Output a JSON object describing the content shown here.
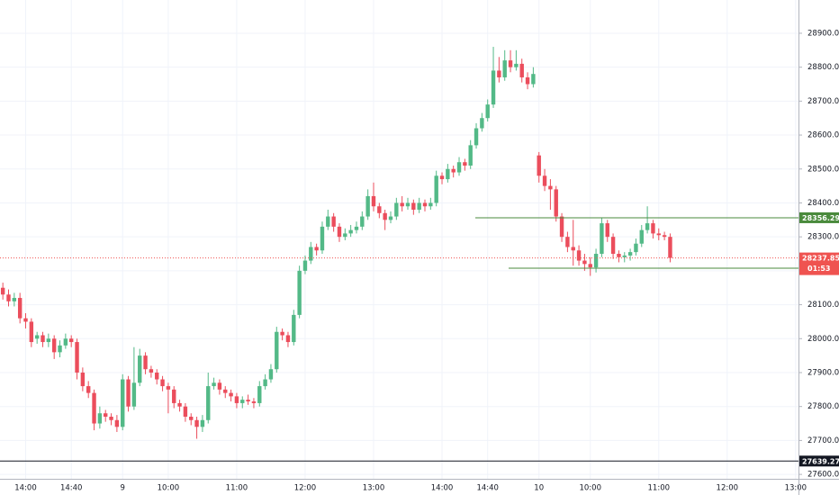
{
  "chart_data": {
    "type": "candlestick",
    "categories": [
      null,
      null,
      null,
      null,
      "14:00",
      null,
      null,
      null,
      null,
      null,
      null,
      null,
      "14:40",
      null,
      null,
      null,
      null,
      null,
      null,
      null,
      null,
      "9",
      null,
      null,
      null,
      null,
      null,
      null,
      null,
      "10:00",
      null,
      null,
      null,
      null,
      null,
      null,
      null,
      null,
      null,
      null,
      null,
      "11:00",
      null,
      null,
      null,
      null,
      null,
      null,
      null,
      null,
      null,
      null,
      null,
      "12:00",
      null,
      null,
      null,
      null,
      null,
      null,
      null,
      null,
      null,
      null,
      null,
      "13:00",
      null,
      null,
      null,
      null,
      null,
      null,
      null,
      null,
      null,
      null,
      null,
      "14:00",
      null,
      null,
      null,
      null,
      null,
      null,
      null,
      "14:40",
      null,
      null,
      null,
      null,
      null,
      null,
      null,
      null,
      "10",
      null,
      null,
      null,
      null,
      null,
      null,
      null,
      null,
      "10:00",
      null,
      null,
      null,
      null,
      null,
      null,
      null,
      null,
      null,
      null,
      null,
      "11:00",
      null,
      null,
      null,
      null,
      null,
      null,
      null,
      null,
      null,
      null,
      null,
      "12:00",
      null,
      null,
      null,
      null,
      null,
      null,
      null,
      null,
      null,
      null,
      null,
      "13:00"
    ],
    "ohlc": [
      [
        28150,
        28165,
        28115,
        28130
      ],
      [
        28130,
        28145,
        28095,
        28110
      ],
      [
        28110,
        28135,
        28095,
        28120
      ],
      [
        28120,
        28135,
        28045,
        28060
      ],
      [
        28060,
        28075,
        28030,
        28050
      ],
      [
        28050,
        28060,
        27975,
        27990
      ],
      [
        28000,
        28020,
        27985,
        28010
      ],
      [
        28010,
        28020,
        27975,
        27990
      ],
      [
        27990,
        28015,
        27975,
        28000
      ],
      [
        28000,
        28010,
        27940,
        27960
      ],
      [
        27960,
        27995,
        27945,
        27980
      ],
      [
        27980,
        28015,
        27970,
        28000
      ],
      [
        28000,
        28010,
        27975,
        27990
      ],
      [
        27990,
        28000,
        27880,
        27900
      ],
      [
        27900,
        27915,
        27845,
        27860
      ],
      [
        27860,
        27875,
        27825,
        27840
      ],
      [
        27840,
        27850,
        27730,
        27750
      ],
      [
        27750,
        27800,
        27735,
        27780
      ],
      [
        27780,
        27790,
        27755,
        27770
      ],
      [
        27770,
        27780,
        27745,
        27760
      ],
      [
        27760,
        27775,
        27725,
        27740
      ],
      [
        27740,
        27895,
        27730,
        27880
      ],
      [
        27880,
        27890,
        27785,
        27800
      ],
      [
        27800,
        27975,
        27790,
        27870
      ],
      [
        27870,
        27970,
        27860,
        27950
      ],
      [
        27950,
        27960,
        27895,
        27910
      ],
      [
        27910,
        27920,
        27885,
        27900
      ],
      [
        27900,
        27910,
        27865,
        27880
      ],
      [
        27880,
        27890,
        27845,
        27860
      ],
      [
        27860,
        27870,
        27780,
        27850
      ],
      [
        27850,
        27860,
        27795,
        27810
      ],
      [
        27810,
        27820,
        27785,
        27800
      ],
      [
        27800,
        27810,
        27755,
        27770
      ],
      [
        27770,
        27780,
        27745,
        27760
      ],
      [
        27760,
        27770,
        27705,
        27740
      ],
      [
        27740,
        27775,
        27725,
        27760
      ],
      [
        27760,
        27900,
        27750,
        27860
      ],
      [
        27860,
        27885,
        27850,
        27870
      ],
      [
        27870,
        27880,
        27835,
        27850
      ],
      [
        27850,
        27860,
        27825,
        27840
      ],
      [
        27840,
        27850,
        27815,
        27830
      ],
      [
        27830,
        27840,
        27795,
        27810
      ],
      [
        27810,
        27830,
        27795,
        27820
      ],
      [
        27820,
        27835,
        27805,
        27815
      ],
      [
        27815,
        27825,
        27795,
        27810
      ],
      [
        27810,
        27875,
        27800,
        27860
      ],
      [
        27860,
        27895,
        27850,
        27880
      ],
      [
        27880,
        27925,
        27870,
        27910
      ],
      [
        27910,
        28035,
        27900,
        28020
      ],
      [
        28020,
        28030,
        27995,
        28010
      ],
      [
        28010,
        28020,
        27975,
        27990
      ],
      [
        27990,
        28085,
        27980,
        28070
      ],
      [
        28070,
        28215,
        28060,
        28200
      ],
      [
        28200,
        28245,
        28190,
        28230
      ],
      [
        28230,
        28285,
        28220,
        28270
      ],
      [
        28270,
        28280,
        28245,
        28260
      ],
      [
        28260,
        28345,
        28250,
        28330
      ],
      [
        28330,
        28380,
        28320,
        28360
      ],
      [
        28360,
        28370,
        28315,
        28330
      ],
      [
        28330,
        28340,
        28285,
        28300
      ],
      [
        28300,
        28325,
        28290,
        28310
      ],
      [
        28310,
        28335,
        28300,
        28320
      ],
      [
        28320,
        28345,
        28310,
        28330
      ],
      [
        28330,
        28375,
        28320,
        28360
      ],
      [
        28360,
        28440,
        28350,
        28420
      ],
      [
        28420,
        28460,
        28375,
        28390
      ],
      [
        28390,
        28400,
        28355,
        28370
      ],
      [
        28370,
        28380,
        28320,
        28350
      ],
      [
        28350,
        28375,
        28340,
        28360
      ],
      [
        28360,
        28415,
        28350,
        28400
      ],
      [
        28400,
        28420,
        28375,
        28390
      ],
      [
        28390,
        28415,
        28380,
        28400
      ],
      [
        28400,
        28410,
        28365,
        28380
      ],
      [
        28380,
        28415,
        28370,
        28400
      ],
      [
        28400,
        28410,
        28375,
        28390
      ],
      [
        28390,
        28415,
        28380,
        28400
      ],
      [
        28400,
        28495,
        28390,
        28480
      ],
      [
        28480,
        28490,
        28455,
        28470
      ],
      [
        28470,
        28515,
        28460,
        28500
      ],
      [
        28500,
        28510,
        28475,
        28490
      ],
      [
        28490,
        28535,
        28480,
        28520
      ],
      [
        28520,
        28530,
        28495,
        28510
      ],
      [
        28510,
        28585,
        28500,
        28570
      ],
      [
        28570,
        28635,
        28560,
        28620
      ],
      [
        28620,
        28665,
        28610,
        28650
      ],
      [
        28650,
        28705,
        28640,
        28690
      ],
      [
        28690,
        28860,
        28680,
        28790
      ],
      [
        28790,
        28830,
        28755,
        28770
      ],
      [
        28770,
        28850,
        28760,
        28820
      ],
      [
        28820,
        28850,
        28785,
        28800
      ],
      [
        28800,
        28850,
        28790,
        28810
      ],
      [
        28810,
        28825,
        28755,
        28770
      ],
      [
        28770,
        28785,
        28735,
        28750
      ],
      [
        28750,
        28800,
        28740,
        28780
      ],
      [
        28540,
        28550,
        28460,
        28480
      ],
      [
        28480,
        28500,
        28435,
        28450
      ],
      [
        28450,
        28470,
        28380,
        28440
      ],
      [
        28440,
        28450,
        28345,
        28360
      ],
      [
        28360,
        28370,
        28285,
        28300
      ],
      [
        28300,
        28315,
        28255,
        28270
      ],
      [
        28270,
        28350,
        28215,
        28260
      ],
      [
        28260,
        28275,
        28215,
        28230
      ],
      [
        28230,
        28250,
        28200,
        28220
      ],
      [
        28220,
        28240,
        28185,
        28210
      ],
      [
        28210,
        28265,
        28195,
        28250
      ],
      [
        28250,
        28355,
        28240,
        28340
      ],
      [
        28340,
        28350,
        28285,
        28300
      ],
      [
        28300,
        28310,
        28235,
        28250
      ],
      [
        28250,
        28260,
        28225,
        28240
      ],
      [
        28240,
        28255,
        28225,
        28245
      ],
      [
        28245,
        28265,
        28230,
        28255
      ],
      [
        28255,
        28295,
        28245,
        28280
      ],
      [
        28280,
        28335,
        28270,
        28320
      ],
      [
        28320,
        28390,
        28310,
        28340
      ],
      [
        28340,
        28350,
        28295,
        28310
      ],
      [
        28310,
        28325,
        28290,
        28305
      ],
      [
        28305,
        28315,
        28290,
        28300
      ],
      [
        28300,
        28310,
        28225,
        28237.85
      ],
      null,
      null,
      null,
      null,
      null,
      null,
      null,
      null,
      null,
      null,
      null,
      null,
      null,
      null,
      null,
      null,
      null,
      null,
      null,
      null,
      null,
      null
    ],
    "up_color": "#53b987",
    "down_color": "#eb4d5c",
    "ylim": [
      27587,
      28998
    ],
    "yticks": [
      {
        "value": 27600,
        "label": "27600.00"
      },
      {
        "value": 27700,
        "label": "27700.00"
      },
      {
        "value": 27800,
        "label": "27800.00"
      },
      {
        "value": 27900,
        "label": "27900.00"
      },
      {
        "value": 28000,
        "label": "28000.00"
      },
      {
        "value": 28100,
        "label": "28100.00"
      },
      {
        "value": 28200,
        "label": "28200.00"
      },
      {
        "value": 28300,
        "label": "28300.00"
      },
      {
        "value": 28400,
        "label": "28400.00"
      },
      {
        "value": 28500,
        "label": "28500.00"
      },
      {
        "value": 28600,
        "label": "28600.00"
      },
      {
        "value": 28700,
        "label": "28700.00"
      },
      {
        "value": 28800,
        "label": "28800.00"
      },
      {
        "value": 28900,
        "label": "28900.00"
      }
    ],
    "grid": true,
    "levels": [
      {
        "value": 28356.29,
        "color": "#4a8a3c"
      },
      {
        "value": 28207.66,
        "color": "#4a8a3c"
      },
      {
        "value": 27639.27,
        "color": "#131722"
      }
    ],
    "last_price_color": "#ef5350",
    "countdown": "01:53"
  }
}
